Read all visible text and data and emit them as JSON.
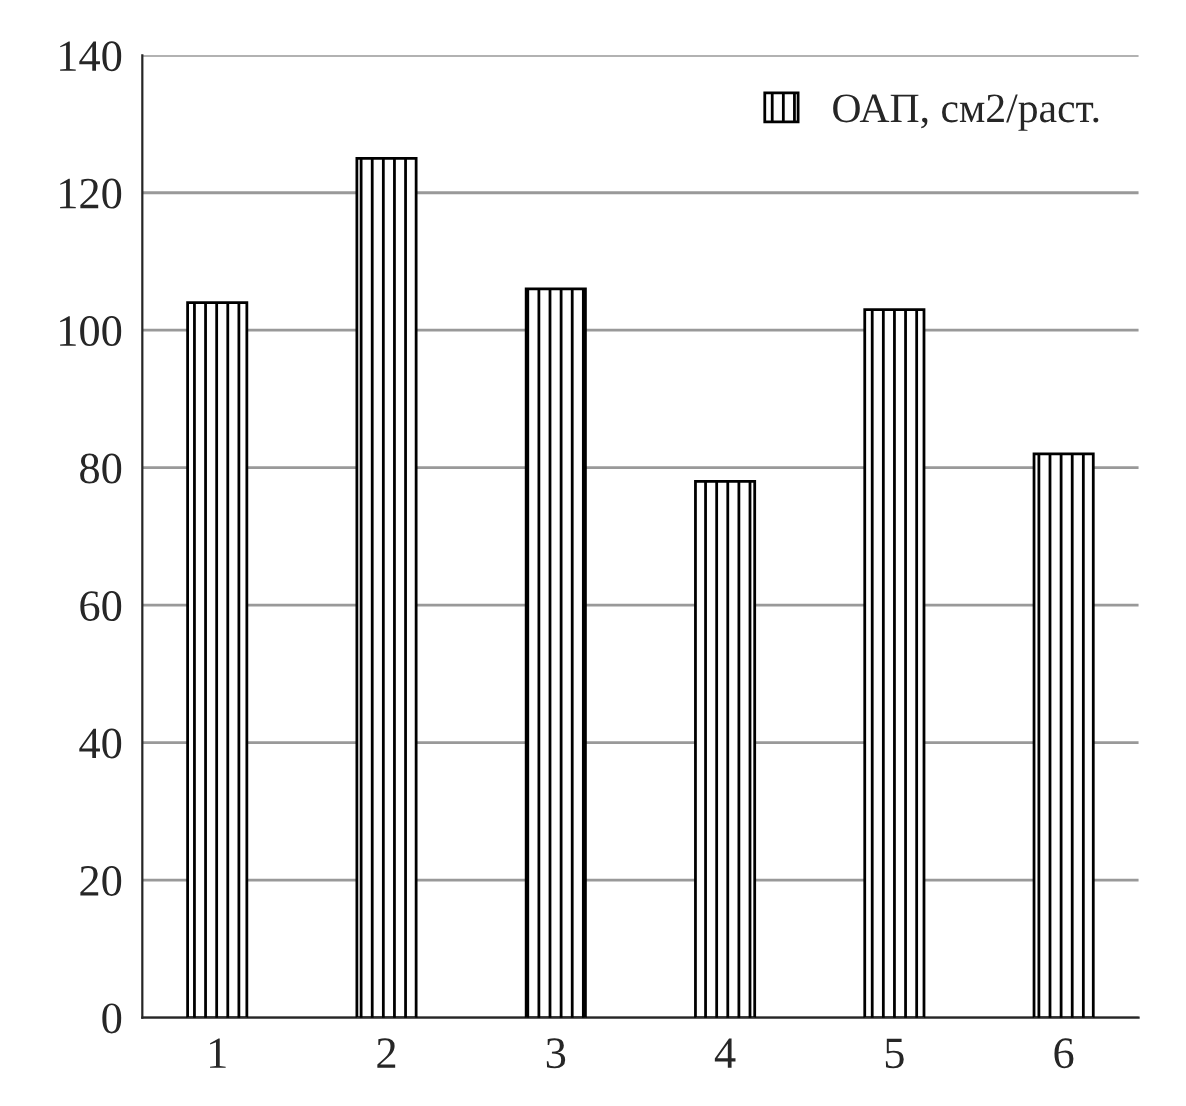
{
  "chart_data": {
    "type": "bar",
    "categories": [
      "1",
      "2",
      "3",
      "4",
      "5",
      "6"
    ],
    "series": [
      {
        "name": "ОАП, см2/раст.",
        "color": "#000000",
        "values": [
          104,
          125,
          106,
          78,
          103,
          82
        ]
      }
    ],
    "ylim": [
      0,
      140
    ],
    "yticks": [
      0,
      20,
      40,
      60,
      80,
      100,
      120,
      140
    ],
    "grid": "y",
    "legend": "top right"
  }
}
